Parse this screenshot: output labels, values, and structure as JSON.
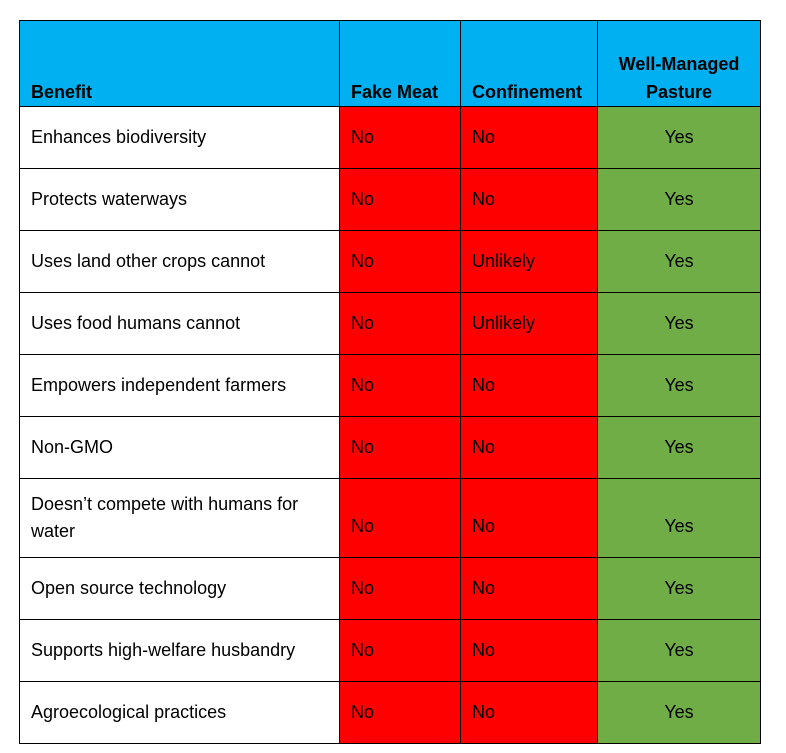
{
  "table": {
    "headers": [
      "Benefit",
      "Fake Meat",
      "Confinement",
      "Well-Managed Pasture"
    ],
    "rows": [
      {
        "benefit": "Enhances biodiversity",
        "fake_meat": "No",
        "confinement": "No",
        "pasture": "Yes"
      },
      {
        "benefit": "Protects waterways",
        "fake_meat": "No",
        "confinement": "No",
        "pasture": "Yes"
      },
      {
        "benefit": "Uses land other crops cannot",
        "fake_meat": "No",
        "confinement": "Unlikely",
        "pasture": "Yes"
      },
      {
        "benefit": "Uses food humans cannot",
        "fake_meat": "No",
        "confinement": "Unlikely",
        "pasture": "Yes"
      },
      {
        "benefit": "Empowers independent farmers",
        "fake_meat": "No",
        "confinement": "No",
        "pasture": "Yes"
      },
      {
        "benefit": "Non-GMO",
        "fake_meat": "No",
        "confinement": "No",
        "pasture": "Yes"
      },
      {
        "benefit": "Doesn’t compete with humans for water",
        "fake_meat": "No",
        "confinement": "No",
        "pasture": "Yes"
      },
      {
        "benefit": "Open source technology",
        "fake_meat": "No",
        "confinement": "No",
        "pasture": "Yes"
      },
      {
        "benefit": "Supports high-welfare husbandry",
        "fake_meat": "No",
        "confinement": "No",
        "pasture": "Yes"
      },
      {
        "benefit": "Agroecological practices",
        "fake_meat": "No",
        "confinement": "No",
        "pasture": "Yes"
      }
    ]
  },
  "colors": {
    "header_bg": "#00b0f0",
    "negative_bg": "#ff0000",
    "positive_bg": "#70ad47"
  }
}
